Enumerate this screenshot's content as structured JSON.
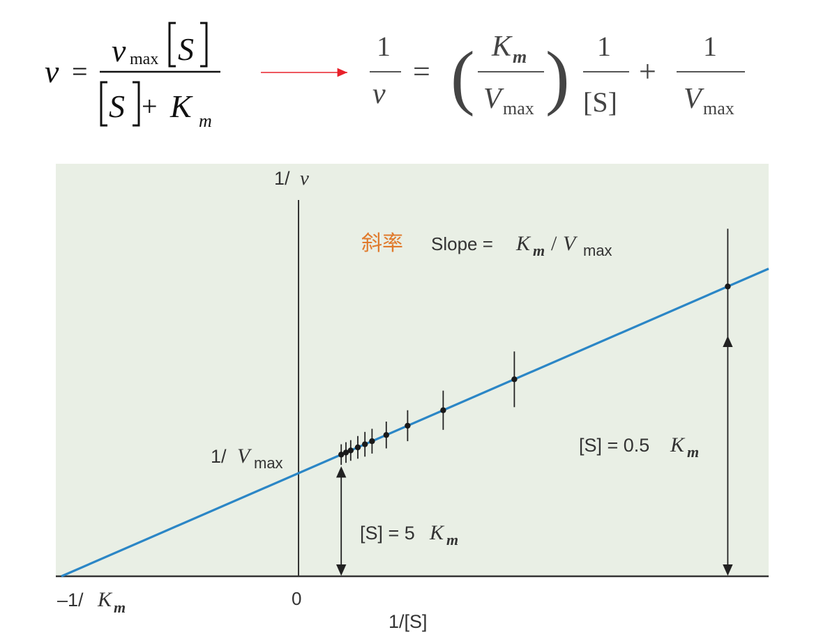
{
  "equations": {
    "michaelis_menten": {
      "lhs": "v",
      "equals": "=",
      "num_v": "v",
      "num_sub": "max",
      "num_S": "S",
      "den_S": "S",
      "plus": "+",
      "den_K": "K",
      "den_sub": "m"
    },
    "lineweaver_burk": {
      "one_a": "1",
      "v": "v",
      "equals": "=",
      "paren_open": "(",
      "paren_close": ")",
      "km_K": "K",
      "km_sub": "m",
      "vmax_V": "V",
      "vmax_sub": "max",
      "one_b": "1",
      "S_bracket": "[S]",
      "plus": "+",
      "one_c": "1",
      "vmax2_V": "V",
      "vmax2_sub": "max"
    },
    "arrow_color": "#e8202a"
  },
  "chart_data": {
    "type": "scatter",
    "title": "",
    "line_color": "#2b86c6",
    "panel_background": "#e9efe5",
    "grid": false,
    "xlabel": "1/[S]",
    "ylabel": {
      "prefix": "1/",
      "var": "v"
    },
    "axis_ranges_note": "x spans from about -1/Km to about 1.8 in 1/Km units; y in 1/Vmax units",
    "xlim": [
      -1.05,
      2.0
    ],
    "ylim": [
      0,
      3.45
    ],
    "tick_labels": {
      "x_neg": {
        "sign": "–1/",
        "K": "K",
        "sub": "m"
      },
      "x_zero": "0",
      "y_intercept": {
        "prefix": "1/",
        "V": "V",
        "sub": "max"
      }
    },
    "series": [
      {
        "x": [
          0.18,
          0.2,
          0.22,
          0.25,
          0.28,
          0.31,
          0.37,
          0.46,
          0.61,
          0.91,
          1.81
        ],
        "y": [
          1.18,
          1.2,
          1.22,
          1.25,
          1.28,
          1.31,
          1.37,
          1.46,
          1.61,
          1.91,
          2.81
        ],
        "error": [
          0.1,
          0.1,
          0.1,
          0.11,
          0.12,
          0.12,
          0.13,
          0.15,
          0.19,
          0.27,
          0.56
        ]
      }
    ],
    "fit_line": {
      "slope": 1.0,
      "intercept": 1.0
    },
    "annotations": {
      "slope_cn": "斜率",
      "slope_cn_color": "#e07a2c",
      "slope_prefix": "Slope = ",
      "slope_K": "K",
      "slope_K_sub": "m",
      "slope_slash": "/",
      "slope_V": "V",
      "slope_V_sub": "max",
      "s5_prefix": "[S] = 5",
      "s5_K": "K",
      "s5_sub": "m",
      "s05_prefix": "[S] = 0.5",
      "s05_K": "K",
      "s05_sub": "m"
    }
  }
}
